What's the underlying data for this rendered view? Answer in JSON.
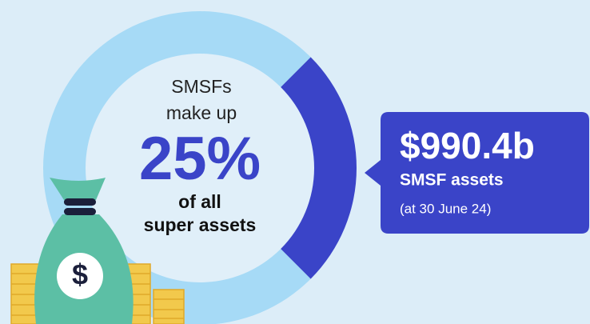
{
  "chart_data": {
    "type": "donut",
    "values": [
      25,
      75
    ],
    "value_labels": [
      "25%",
      null
    ],
    "colors": [
      "#3a44c8",
      "#a6daf6"
    ],
    "center_text": {
      "top": [
        "SMSFs",
        "make up"
      ],
      "bottom": [
        "of all",
        "super assets"
      ]
    },
    "callout": {
      "headline": "$990.4b",
      "label": "SMSF assets",
      "note": "(at 30 June 24)"
    }
  }
}
